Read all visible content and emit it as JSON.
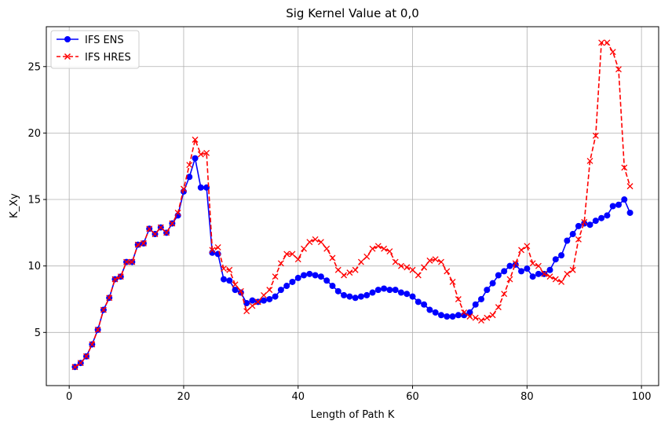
{
  "chart_data": {
    "type": "line",
    "title": "Sig Kernel Value at 0,0",
    "xlabel": "Length of Path K",
    "ylabel": "K_Xy",
    "xlim": [
      -4,
      103
    ],
    "ylim": [
      1,
      28
    ],
    "xticks": [
      0,
      20,
      40,
      60,
      80,
      100
    ],
    "yticks": [
      5,
      10,
      15,
      20,
      25
    ],
    "grid": true,
    "legend_position": "upper-left",
    "series": [
      {
        "name": "IFS ENS",
        "color": "#0000ff",
        "linestyle": "solid",
        "marker": "circle",
        "x": [
          1,
          2,
          3,
          4,
          5,
          6,
          7,
          8,
          9,
          10,
          11,
          12,
          13,
          14,
          15,
          16,
          17,
          18,
          19,
          20,
          21,
          22,
          23,
          24,
          25,
          26,
          27,
          28,
          29,
          30,
          31,
          32,
          33,
          34,
          35,
          36,
          37,
          38,
          39,
          40,
          41,
          42,
          43,
          44,
          45,
          46,
          47,
          48,
          49,
          50,
          51,
          52,
          53,
          54,
          55,
          56,
          57,
          58,
          59,
          60,
          61,
          62,
          63,
          64,
          65,
          66,
          67,
          68,
          69,
          70,
          71,
          72,
          73,
          74,
          75,
          76,
          77,
          78,
          79,
          80,
          81,
          82,
          83,
          84,
          85,
          86,
          87,
          88,
          89,
          90,
          91,
          92,
          93,
          94,
          95,
          96,
          97,
          98
        ],
        "y": [
          2.4,
          2.7,
          3.2,
          4.1,
          5.2,
          6.7,
          7.6,
          9.0,
          9.2,
          10.3,
          10.3,
          11.6,
          11.7,
          12.8,
          12.4,
          12.9,
          12.5,
          13.2,
          13.8,
          15.6,
          16.7,
          18.1,
          15.9,
          15.9,
          11.0,
          10.9,
          9.0,
          8.9,
          8.2,
          8.0,
          7.2,
          7.4,
          7.3,
          7.4,
          7.5,
          7.7,
          8.2,
          8.5,
          8.8,
          9.1,
          9.3,
          9.4,
          9.3,
          9.2,
          8.9,
          8.5,
          8.1,
          7.8,
          7.7,
          7.6,
          7.7,
          7.8,
          8.0,
          8.2,
          8.3,
          8.2,
          8.2,
          8.0,
          7.9,
          7.7,
          7.3,
          7.1,
          6.7,
          6.5,
          6.3,
          6.2,
          6.2,
          6.3,
          6.3,
          6.5,
          7.1,
          7.5,
          8.2,
          8.7,
          9.3,
          9.6,
          10.0,
          10.1,
          9.6,
          9.8,
          9.2,
          9.4,
          9.4,
          9.7,
          10.5,
          10.8,
          11.9,
          12.4,
          13.0,
          13.2,
          13.1,
          13.4,
          13.6,
          13.8,
          14.5,
          14.6,
          15.0,
          14.0
        ]
      },
      {
        "name": "IFS HRES",
        "color": "#ff0000",
        "linestyle": "dashed",
        "marker": "x",
        "x": [
          1,
          2,
          3,
          4,
          5,
          6,
          7,
          8,
          9,
          10,
          11,
          12,
          13,
          14,
          15,
          16,
          17,
          18,
          19,
          20,
          21,
          22,
          23,
          24,
          25,
          26,
          27,
          28,
          29,
          30,
          31,
          32,
          33,
          34,
          35,
          36,
          37,
          38,
          39,
          40,
          41,
          42,
          43,
          44,
          45,
          46,
          47,
          48,
          49,
          50,
          51,
          52,
          53,
          54,
          55,
          56,
          57,
          58,
          59,
          60,
          61,
          62,
          63,
          64,
          65,
          66,
          67,
          68,
          69,
          70,
          71,
          72,
          73,
          74,
          75,
          76,
          77,
          78,
          79,
          80,
          81,
          82,
          83,
          84,
          85,
          86,
          87,
          88,
          89,
          90,
          91,
          92,
          93,
          94,
          95,
          96,
          97,
          98
        ],
        "y": [
          2.4,
          2.7,
          3.2,
          4.1,
          5.2,
          6.7,
          7.6,
          9.0,
          9.2,
          10.3,
          10.3,
          11.6,
          11.7,
          12.8,
          12.4,
          12.9,
          12.5,
          13.2,
          14.0,
          15.8,
          17.6,
          19.5,
          18.4,
          18.5,
          11.2,
          11.4,
          9.8,
          9.7,
          8.6,
          8.1,
          6.6,
          7.0,
          7.3,
          7.8,
          8.2,
          9.2,
          10.2,
          10.9,
          10.9,
          10.5,
          11.3,
          11.8,
          12.0,
          11.8,
          11.3,
          10.6,
          9.7,
          9.3,
          9.5,
          9.7,
          10.3,
          10.7,
          11.3,
          11.5,
          11.3,
          11.1,
          10.3,
          10.0,
          9.9,
          9.7,
          9.3,
          9.9,
          10.4,
          10.5,
          10.3,
          9.6,
          8.8,
          7.5,
          6.5,
          6.2,
          6.1,
          5.9,
          6.1,
          6.3,
          6.9,
          7.9,
          9.0,
          10.2,
          11.2,
          11.5,
          10.2,
          10.0,
          9.4,
          9.2,
          9.0,
          8.8,
          9.4,
          9.7,
          12.0,
          13.3,
          17.9,
          19.8,
          26.8,
          26.8,
          26.1,
          24.8,
          17.4,
          16.0
        ]
      }
    ]
  }
}
